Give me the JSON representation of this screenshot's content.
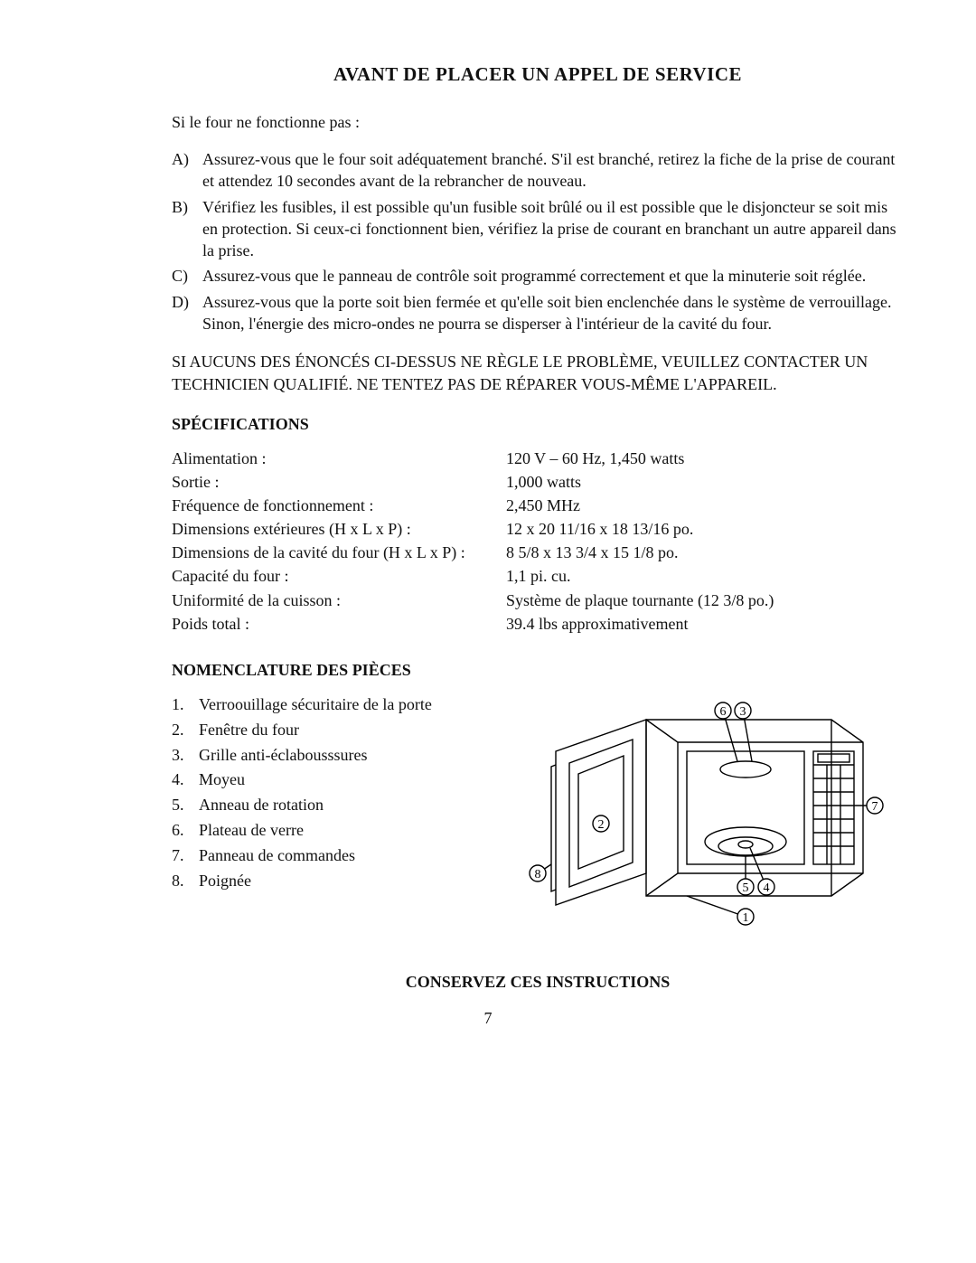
{
  "title": "AVANT DE PLACER UN APPEL DE SERVICE",
  "intro": "Si le four ne fonctionne pas :",
  "items": [
    {
      "letter": "A)",
      "text": "Assurez-vous que le four soit adéquatement branché. S'il est branché, retirez la fiche de la prise de courant et attendez 10 secondes avant de la rebrancher de nouveau."
    },
    {
      "letter": "B)",
      "text": "Vérifiez les fusibles, il est possible qu'un fusible soit brûlé ou il est possible que le disjoncteur se soit mis en protection. Si ceux-ci fonctionnent bien, vérifiez la prise de courant en branchant un autre appareil dans la prise."
    },
    {
      "letter": "C)",
      "text": "Assurez-vous que le panneau de contrôle soit programmé correctement et que la minuterie soit réglée."
    },
    {
      "letter": "D)",
      "text": "Assurez-vous que la porte soit bien fermée et qu'elle soit bien enclenchée dans le système de verrouillage. Sinon, l'énergie des micro-ondes ne pourra se disperser à l'intérieur de la cavité du four."
    }
  ],
  "warning": "SI AUCUNS DES ÉNONCÉS CI-DESSUS NE RÈGLE LE PROBLÈME, VEUILLEZ CONTACTER UN TECHNICIEN QUALIFIÉ. NE TENTEZ PAS DE RÉPARER VOUS-MÊME L'APPAREIL.",
  "spec_head": "SPÉCIFICATIONS",
  "specs": {
    "labels": [
      "Alimentation :",
      "Sortie :",
      "Fréquence de fonctionnement :",
      "Dimensions extérieures (H x L x P) :",
      "Dimensions de la cavité du four (H x L x P) :",
      "Capacité du four :",
      "Uniformité de la cuisson :",
      "Poids total :"
    ],
    "values": [
      "120 V – 60 Hz, 1,450 watts",
      "1,000 watts",
      "2,450 MHz",
      "12 x 20 11/16 x 18 13/16 po.",
      "8 5/8 x 13 3/4 x 15 1/8 po.",
      "1,1 pi. cu.",
      "Système de plaque tournante (12 3/8 po.)",
      "39.4 lbs approximativement"
    ]
  },
  "parts_head": "NOMENCLATURE DES PIÈCES",
  "parts": [
    {
      "n": "1.",
      "t": "Verroouillage sécuritaire de la porte"
    },
    {
      "n": "2.",
      "t": "Fenêtre du four"
    },
    {
      "n": "3.",
      "t": "Grille anti-éclabousssures"
    },
    {
      "n": "4.",
      "t": "Moyeu"
    },
    {
      "n": "5.",
      "t": "Anneau de rotation"
    },
    {
      "n": "6.",
      "t": "Plateau de verre"
    },
    {
      "n": "7.",
      "t": "Panneau de commandes"
    },
    {
      "n": "8.",
      "t": "Poignée"
    }
  ],
  "diagram": {
    "stroke": "#000000",
    "stroke_width": 1.4,
    "fill": "none",
    "label_font_size": 14,
    "callouts": [
      "1",
      "2",
      "3",
      "4",
      "5",
      "6",
      "7",
      "8"
    ]
  },
  "footer": "CONSERVEZ CES INSTRUCTIONS",
  "page_number": "7"
}
